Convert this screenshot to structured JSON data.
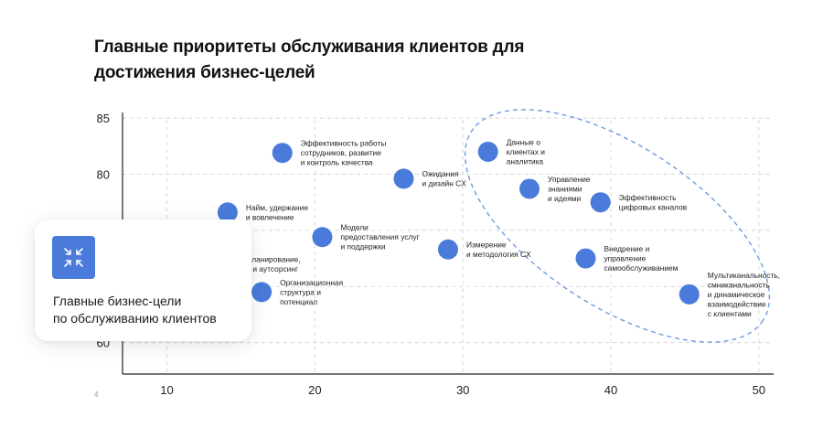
{
  "title": "Главные приоритеты обслуживания клиентов для достижения бизнес-целей",
  "page_number": "4",
  "card": {
    "text": "Главные бизнес-цели\nпо обслуживанию клиентов",
    "icon": "collapse-arrows-icon"
  },
  "colors": {
    "point": "#4A7BDB",
    "highlight": "#6E9BE0",
    "axis": "#222222",
    "grid": "#d8d8d8"
  },
  "chart_data": {
    "type": "scatter",
    "xlim": [
      7,
      51
    ],
    "ylim": [
      62.2,
      85.5
    ],
    "x_ticks": [
      10,
      20,
      30,
      40,
      50
    ],
    "y_ticks": [
      85,
      80
    ],
    "y_tick_partial": "60",
    "grid": "dashed",
    "points": [
      {
        "x": 17.8,
        "y": 81.9,
        "label": "Эффективность работы\nсотрудников, развитие\nи контроль качества"
      },
      {
        "x": 14.1,
        "y": 76.6,
        "label": "Найм, удержание\nи вовлечение"
      },
      {
        "x": 20.5,
        "y": 74.4,
        "label": "Модели\nпредоставления услуг\nи поддержки"
      },
      {
        "x": 26.0,
        "y": 79.6,
        "label": "Ожидания\nи дизайн CX"
      },
      {
        "x": 29.0,
        "y": 73.3,
        "label": "Измерение\nи методология CX"
      },
      {
        "x": 16.4,
        "y": 69.5,
        "label": "Организационная\nструктура и\nпотенциал"
      },
      {
        "x": 13.0,
        "y": 72.0,
        "label": "ское планирование,\nвание и аутсорсинг"
      },
      {
        "x": 31.7,
        "y": 82.0,
        "label": "Данные о\nклиентах и\nаналитика"
      },
      {
        "x": 34.5,
        "y": 78.7,
        "label": "Управление\nзнаниями\nи идеями"
      },
      {
        "x": 39.3,
        "y": 77.5,
        "label": "Эффективность\nцифровых каналов"
      },
      {
        "x": 38.3,
        "y": 72.5,
        "label": "Внедрение и\nуправление\nсамообслуживанием"
      },
      {
        "x": 45.3,
        "y": 69.3,
        "label": "Мультиканальность,\nсмниканальность\nи динамическое\nвзаимодействие\nс клиентами"
      }
    ]
  }
}
